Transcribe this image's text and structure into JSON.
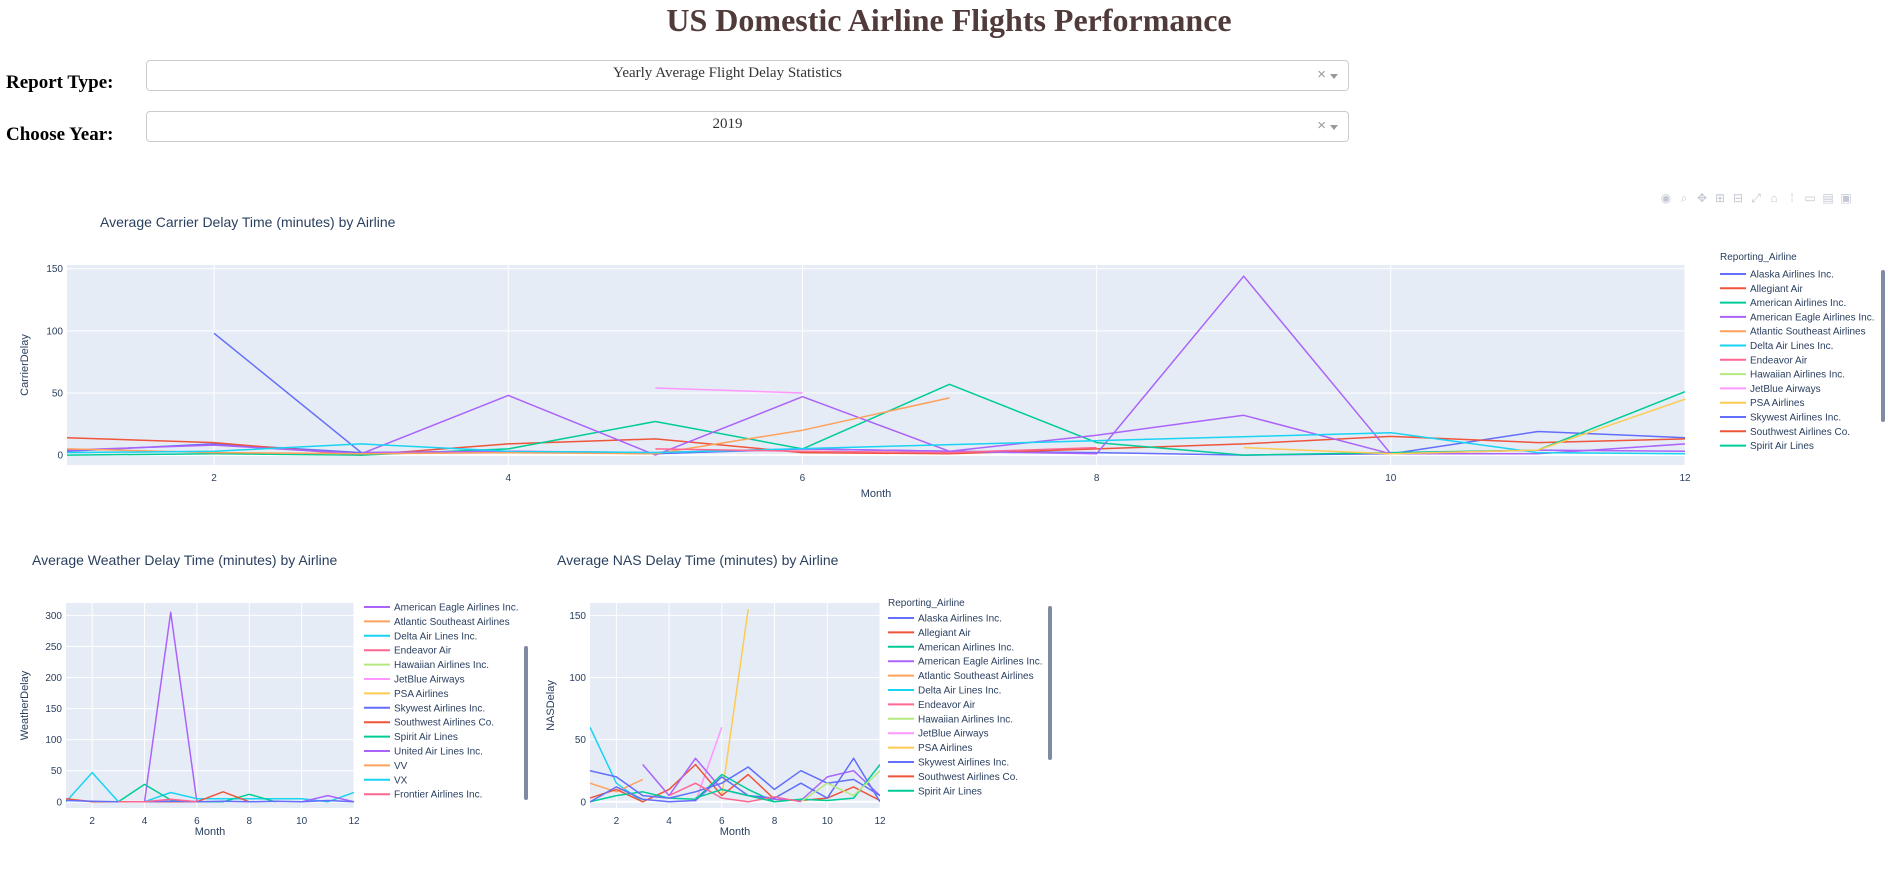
{
  "app": {
    "title": "US Domestic Airline Flights Performance"
  },
  "controls": {
    "report_type_label": "Report Type:",
    "report_type_value": "Yearly Average Flight Delay Statistics",
    "year_label": "Choose Year:",
    "year_value": "2019",
    "clear_glyph": "×"
  },
  "modebar": {
    "icons": [
      "camera-icon",
      "zoom-icon",
      "pan-icon",
      "zoom-in-icon",
      "zoom-out-icon",
      "autoscale-icon",
      "reset-axes-icon",
      "spike-lines-icon",
      "hover-closest-icon",
      "hover-compare-icon",
      "plotly-logo-icon"
    ]
  },
  "colors": {
    "Alaska Airlines Inc.": "#636efa",
    "Allegiant Air": "#ef553b",
    "American Airlines Inc.": "#00cc96",
    "American Eagle Airlines Inc.": "#ab63fa",
    "Atlantic Southeast Airlines": "#ffa15a",
    "Delta Air Lines Inc.": "#19d3f3",
    "Endeavor Air": "#ff6692",
    "Hawaiian Airlines Inc.": "#b6e880",
    "JetBlue Airways": "#ff97ff",
    "PSA Airlines": "#fecb52",
    "Skywest Airlines Inc.": "#636efa",
    "Southwest Airlines Co.": "#ef553b",
    "Spirit Air Lines": "#00cc96",
    "United Air Lines Inc.": "#ab63fa",
    "VV": "#ffa15a",
    "VX": "#19d3f3",
    "Frontier Airlines Inc.": "#ff6692"
  },
  "chart_data": [
    {
      "type": "line",
      "title": "Average Carrier Delay Time (minutes) by Airline",
      "xlabel": "Month",
      "ylabel": "CarrierDelay",
      "xlim": [
        1,
        12
      ],
      "ylim": [
        -8,
        153
      ],
      "xticks": [
        2,
        4,
        6,
        8,
        10,
        12
      ],
      "yticks": [
        0,
        50,
        100,
        150
      ],
      "legend_title": "Reporting_Airline",
      "legend": [
        "Alaska Airlines Inc.",
        "Allegiant Air",
        "American Airlines Inc.",
        "American Eagle Airlines Inc.",
        "Atlantic Southeast Airlines",
        "Delta Air Lines Inc.",
        "Endeavor Air",
        "Hawaiian Airlines Inc.",
        "JetBlue Airways",
        "PSA Airlines",
        "Skywest Airlines Inc.",
        "Southwest Airlines Co.",
        "Spirit Air Lines"
      ],
      "series": [
        {
          "name": "Alaska Airlines Inc.",
          "x": [
            2,
            3
          ],
          "values": [
            98,
            2
          ]
        },
        {
          "name": "Skywest Airlines Inc.",
          "x": [
            1,
            2,
            3,
            4,
            5,
            6,
            7,
            8,
            9,
            10,
            11,
            12
          ],
          "values": [
            3,
            9,
            2,
            3,
            1,
            5,
            3,
            2,
            0,
            1,
            19,
            14
          ]
        },
        {
          "name": "Southwest Airlines Co.",
          "x": [
            1,
            2,
            3,
            4,
            5,
            6,
            7,
            8,
            9,
            10,
            11,
            12
          ],
          "values": [
            14,
            10,
            0,
            9,
            13,
            2,
            1,
            5,
            9,
            15,
            10,
            13
          ]
        },
        {
          "name": "Spirit Air Lines",
          "x": [
            1,
            2,
            3,
            4,
            5,
            6,
            7,
            8,
            9,
            10,
            11,
            12
          ],
          "values": [
            0,
            1,
            0,
            5,
            27,
            5,
            57,
            10,
            0,
            2,
            4,
            51
          ]
        },
        {
          "name": "American Eagle Airlines Inc.",
          "x": [
            1,
            2,
            3,
            4,
            5,
            6,
            7,
            8,
            9,
            10,
            11,
            12
          ],
          "values": [
            4,
            8,
            1,
            48,
            0,
            47,
            3,
            16,
            32,
            1,
            1,
            9
          ]
        },
        {
          "name": "United Air Lines Inc.",
          "x": [
            3,
            4,
            5,
            6,
            7,
            8,
            9,
            10,
            11,
            12
          ],
          "values": [
            2,
            3,
            2,
            5,
            3,
            1,
            144,
            1,
            4,
            3
          ]
        },
        {
          "name": "Atlantic Southeast Airlines",
          "x": [
            1,
            2,
            3,
            4,
            5,
            6,
            7
          ],
          "values": [
            5,
            2,
            1,
            2,
            1,
            20,
            46
          ]
        },
        {
          "name": "Delta Air Lines Inc.",
          "x": [
            1,
            2,
            3,
            4,
            5,
            10,
            11,
            12
          ],
          "values": [
            2,
            3,
            9,
            3,
            2,
            18,
            2,
            1
          ]
        },
        {
          "name": "Endeavor Air",
          "x": [
            5,
            6,
            7,
            8
          ],
          "values": [
            5,
            3,
            2,
            6
          ]
        },
        {
          "name": "JetBlue Airways",
          "x": [
            5,
            6
          ],
          "values": [
            54,
            50
          ]
        },
        {
          "name": "PSA Airlines",
          "x": [
            9,
            10,
            11,
            12
          ],
          "values": [
            6,
            1,
            4,
            45
          ]
        }
      ]
    },
    {
      "type": "line",
      "title": "Average Weather Delay Time (minutes) by Airline",
      "xlabel": "Month",
      "ylabel": "WeatherDelay",
      "xlim": [
        1,
        12
      ],
      "ylim": [
        -10,
        320
      ],
      "xticks": [
        2,
        4,
        6,
        8,
        10,
        12
      ],
      "yticks": [
        0,
        50,
        100,
        150,
        200,
        250,
        300
      ],
      "legend": [
        "American Eagle Airlines Inc.",
        "Atlantic Southeast Airlines",
        "Delta Air Lines Inc.",
        "Endeavor Air",
        "Hawaiian Airlines Inc.",
        "JetBlue Airways",
        "PSA Airlines",
        "Skywest Airlines Inc.",
        "Southwest Airlines Co.",
        "Spirit Air Lines",
        "United Air Lines Inc.",
        "VV",
        "VX",
        "Frontier Airlines Inc."
      ],
      "series": [
        {
          "name": "American Eagle Airlines Inc.",
          "x": [
            4,
            5,
            6,
            7
          ],
          "values": [
            0,
            305,
            0,
            0
          ]
        },
        {
          "name": "Delta Air Lines Inc.",
          "x": [
            1,
            2,
            3,
            4,
            5,
            6,
            10,
            11,
            12
          ],
          "values": [
            0,
            47,
            0,
            0,
            15,
            5,
            5,
            0,
            15
          ]
        },
        {
          "name": "Spirit Air Lines",
          "x": [
            3,
            4,
            5,
            6,
            7,
            8,
            9
          ],
          "values": [
            0,
            28,
            3,
            0,
            0,
            12,
            0
          ]
        },
        {
          "name": "Southwest Airlines Co.",
          "x": [
            1,
            2,
            6,
            7,
            8
          ],
          "values": [
            5,
            0,
            0,
            16,
            0
          ]
        },
        {
          "name": "United Air Lines Inc.",
          "x": [
            10,
            11,
            12
          ],
          "values": [
            0,
            10,
            0
          ]
        },
        {
          "name": "Skywest Airlines Inc.",
          "x": [
            1,
            2,
            3,
            4,
            5,
            6,
            7,
            8,
            9,
            10,
            11,
            12
          ],
          "values": [
            2,
            1,
            0,
            0,
            1,
            0,
            1,
            0,
            1,
            0,
            2,
            0
          ]
        },
        {
          "name": "Endeavor Air",
          "x": [
            3,
            4,
            5,
            6
          ],
          "values": [
            0,
            0,
            4,
            0
          ]
        }
      ]
    },
    {
      "type": "line",
      "title": "Average NAS Delay Time (minutes) by Airline",
      "xlabel": "Month",
      "ylabel": "NASDelay",
      "xlim": [
        1,
        12
      ],
      "ylim": [
        -5,
        160
      ],
      "xticks": [
        2,
        4,
        6,
        8,
        10,
        12
      ],
      "yticks": [
        0,
        50,
        100,
        150
      ],
      "legend_title": "Reporting_Airline",
      "legend": [
        "Alaska Airlines Inc.",
        "Allegiant Air",
        "American Airlines Inc.",
        "American Eagle Airlines Inc.",
        "Atlantic Southeast Airlines",
        "Delta Air Lines Inc.",
        "Endeavor Air",
        "Hawaiian Airlines Inc.",
        "JetBlue Airways",
        "PSA Airlines",
        "Skywest Airlines Inc.",
        "Southwest Airlines Co.",
        "Spirit Air Lines"
      ],
      "series": [
        {
          "name": "Delta Air Lines Inc.",
          "x": [
            1,
            2,
            3
          ],
          "values": [
            60,
            15,
            0
          ]
        },
        {
          "name": "PSA Airlines",
          "x": [
            6,
            7
          ],
          "values": [
            5,
            155
          ]
        },
        {
          "name": "JetBlue Airways",
          "x": [
            5,
            6
          ],
          "values": [
            0,
            60
          ]
        },
        {
          "name": "Atlantic Southeast Airlines",
          "x": [
            1,
            2,
            3
          ],
          "values": [
            15,
            8,
            18
          ]
        },
        {
          "name": "Allegiant Air",
          "x": [
            1,
            2,
            3,
            4,
            5,
            6,
            7,
            8,
            9,
            10,
            11,
            12
          ],
          "values": [
            3,
            10,
            0,
            10,
            30,
            5,
            22,
            2,
            1,
            3,
            12,
            1
          ]
        },
        {
          "name": "American Eagle Airlines Inc.",
          "x": [
            3,
            4,
            5,
            6,
            7,
            8,
            9,
            10,
            11,
            12
          ],
          "values": [
            30,
            5,
            35,
            10,
            5,
            2,
            1,
            20,
            25,
            5
          ]
        },
        {
          "name": "American Airlines Inc.",
          "x": [
            1,
            2,
            3,
            4,
            5,
            6,
            7,
            8,
            9,
            10,
            11,
            12
          ],
          "values": [
            0,
            5,
            8,
            3,
            2,
            22,
            10,
            0,
            2,
            1,
            3,
            30
          ]
        },
        {
          "name": "Alaska Airlines Inc.",
          "x": [
            1,
            2,
            3,
            4,
            5,
            6,
            7,
            8,
            9,
            10,
            11,
            12
          ],
          "values": [
            0,
            12,
            2,
            0,
            1,
            20,
            5,
            3,
            15,
            3,
            35,
            0
          ]
        },
        {
          "name": "Skywest Airlines Inc.",
          "x": [
            1,
            2,
            3,
            4,
            5,
            6,
            7,
            8,
            9,
            10,
            11,
            12
          ],
          "values": [
            25,
            20,
            5,
            3,
            8,
            15,
            28,
            10,
            25,
            15,
            18,
            5
          ]
        },
        {
          "name": "Endeavor Air",
          "x": [
            4,
            5,
            6,
            7,
            8,
            9
          ],
          "values": [
            5,
            15,
            3,
            0,
            4,
            0
          ]
        },
        {
          "name": "Hawaiian Airlines Inc.",
          "x": [
            9,
            10,
            11,
            12
          ],
          "values": [
            0,
            15,
            5,
            25
          ]
        },
        {
          "name": "Spirit Air Lines",
          "x": [
            5,
            6,
            7,
            8
          ],
          "values": [
            3,
            10,
            5,
            0
          ]
        }
      ]
    }
  ]
}
